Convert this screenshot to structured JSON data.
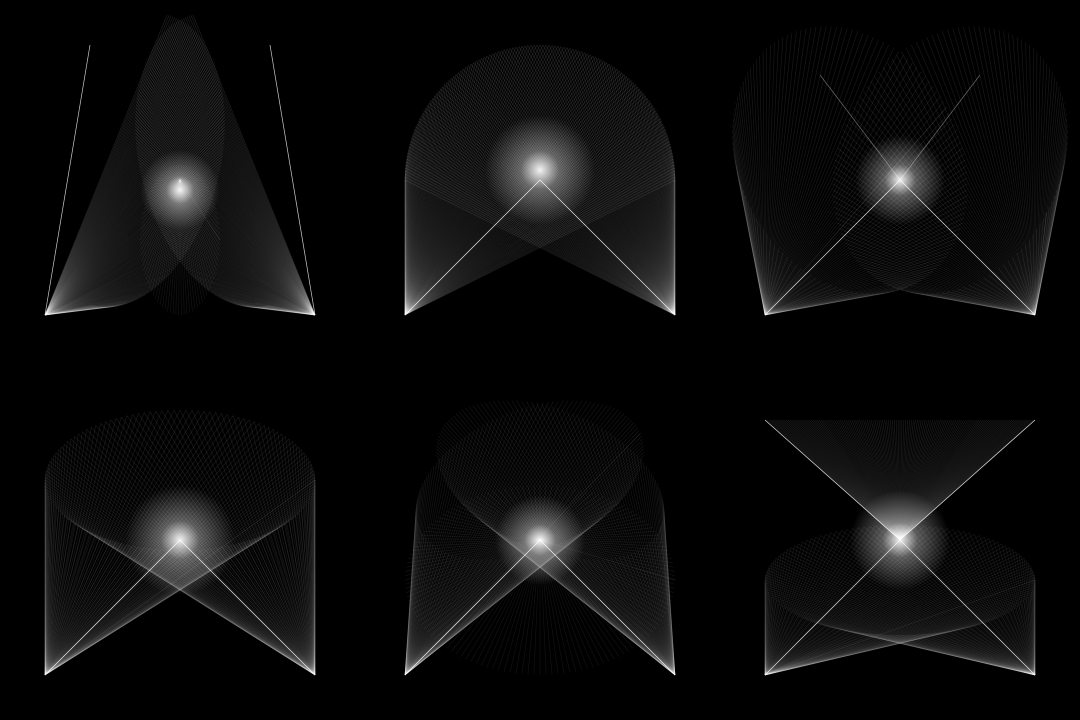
{
  "image": {
    "background_color": "#000000",
    "line_color": "#ffffff",
    "style": "string-art line envelopes, additive white on black"
  },
  "panels": [
    {
      "id": "panel-1",
      "shape": "two-lobe-vertical",
      "row": 1,
      "col": 1
    },
    {
      "id": "panel-2",
      "shape": "single-arch",
      "row": 1,
      "col": 2
    },
    {
      "id": "panel-3",
      "shape": "tilted-two-lobe",
      "row": 1,
      "col": 3
    },
    {
      "id": "panel-4",
      "shape": "wide-oval-top",
      "row": 2,
      "col": 1
    },
    {
      "id": "panel-5",
      "shape": "crossed-ellipses",
      "row": 2,
      "col": 2
    },
    {
      "id": "panel-6",
      "shape": "hourglass-ellipses",
      "row": 2,
      "col": 3
    }
  ]
}
